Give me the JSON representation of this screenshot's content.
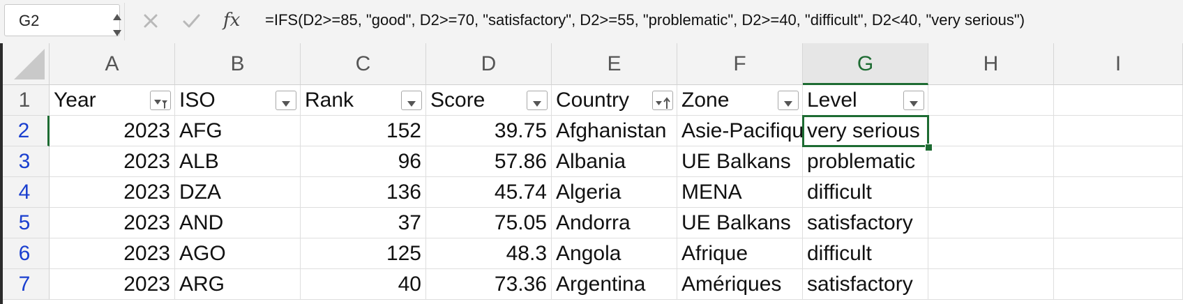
{
  "formula_bar": {
    "name_box": "G2",
    "cancel_icon": "close-icon",
    "confirm_icon": "check-icon",
    "fx_label": "fx",
    "formula": "=IFS(D2>=85, \"good\", D2>=70, \"satisfactory\", D2>=55, \"problematic\", D2>=40, \"difficult\", D2<40, \"very serious\")"
  },
  "sheet": {
    "columns": [
      "A",
      "B",
      "C",
      "D",
      "E",
      "F",
      "G",
      "H",
      "I"
    ],
    "active_column": "G",
    "row_numbers": [
      "1",
      "2",
      "3",
      "4",
      "5",
      "6",
      "7"
    ],
    "headers": {
      "A": "Year",
      "B": "ISO",
      "C": "Rank",
      "D": "Score",
      "E": "Country",
      "F": "Zone",
      "G": "Level"
    },
    "rows": [
      {
        "A": "2023",
        "B": "AFG",
        "C": "152",
        "D": "39.75",
        "E": "Afghanistan",
        "F": "Asie-Pacifique",
        "G": "very serious"
      },
      {
        "A": "2023",
        "B": "ALB",
        "C": "96",
        "D": "57.86",
        "E": "Albania",
        "F": "UE Balkans",
        "G": "problematic"
      },
      {
        "A": "2023",
        "B": "DZA",
        "C": "136",
        "D": "45.74",
        "E": "Algeria",
        "F": "MENA",
        "G": "difficult"
      },
      {
        "A": "2023",
        "B": "AND",
        "C": "37",
        "D": "75.05",
        "E": "Andorra",
        "F": "UE Balkans",
        "G": "satisfactory"
      },
      {
        "A": "2023",
        "B": "AGO",
        "C": "125",
        "D": "48.3",
        "E": "Angola",
        "F": "Afrique",
        "G": "difficult"
      },
      {
        "A": "2023",
        "B": "ARG",
        "C": "40",
        "D": "73.36",
        "E": "Argentina",
        "F": "Amériques",
        "G": "satisfactory"
      }
    ],
    "filter_icons": {
      "A": "filter-active-icon",
      "E": "sort-ascending-icon",
      "default": "dropdown-arrow-icon"
    },
    "colors": {
      "accent_green": "#1d6b32",
      "row_number_blue": "#1a3fcf",
      "header_bg": "#f3f3f3",
      "gridline": "#dedede"
    }
  }
}
